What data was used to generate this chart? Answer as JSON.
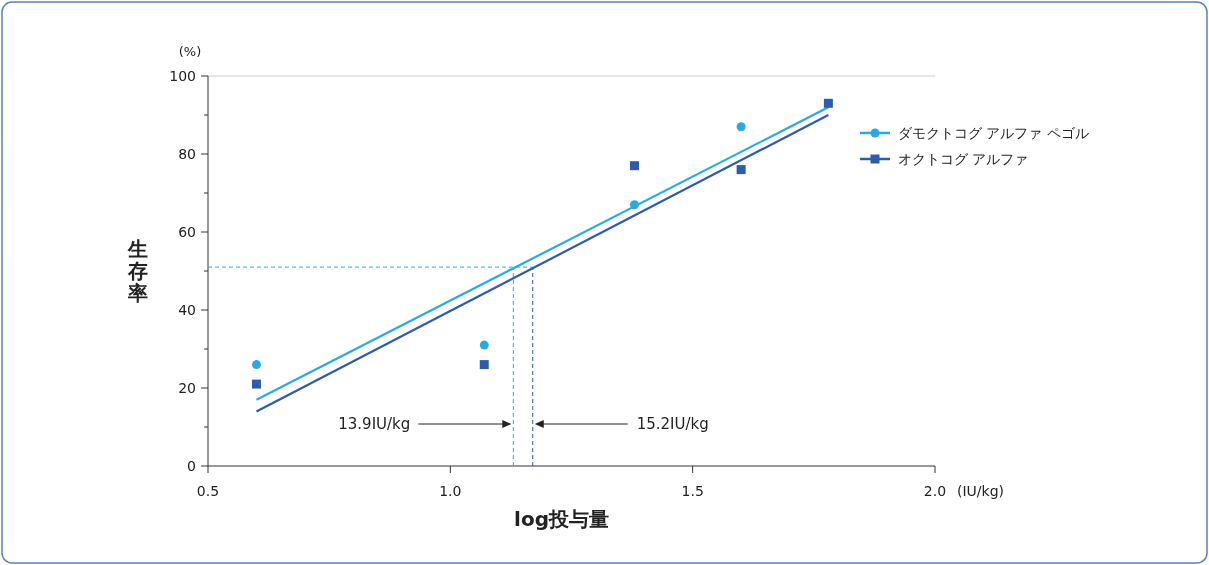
{
  "chart_data": {
    "type": "scatter",
    "xlabel": "log投与量",
    "ylabel": "生存率",
    "xlim": [
      0.5,
      2.0
    ],
    "xticks": [
      0.5,
      {
        "value": 1,
        "label": "1.0"
      },
      1.5,
      {
        "value": 2,
        "label": "2.0"
      }
    ],
    "ylim": [
      0,
      100
    ],
    "yticks": [
      0,
      {
        "value": 10,
        "label": null
      },
      20,
      {
        "value": 30,
        "label": null
      },
      40,
      {
        "value": 50,
        "label": null
      },
      60,
      {
        "value": 70,
        "label": null
      },
      80,
      {
        "value": 90,
        "label": null
      },
      100
    ],
    "grid": false,
    "legend": "top right",
    "series": [
      {
        "name": "ダモクトコグ アルファ ペゴル",
        "color": "#29abe2",
        "marker": "circle",
        "x": [
          0.6,
          1.07,
          1.38,
          1.6
        ],
        "values": [
          26,
          31,
          67,
          87
        ]
      },
      {
        "name": "オクトコグ アルファ",
        "color": "#2e5caa",
        "marker": "square",
        "x": [
          0.6,
          1.07,
          1.38,
          1.6,
          1.78
        ],
        "values": [
          21,
          26,
          77,
          76,
          93
        ]
      },
      {
        "color": "#29abe2",
        "type": "line",
        "marker": "none",
        "x": [
          0.6,
          1.78
        ],
        "values": [
          17,
          92
        ]
      },
      {
        "color": "#2e5caa",
        "type": "line",
        "marker": "none",
        "x": [
          0.6,
          1.78
        ],
        "values": [
          14,
          90
        ]
      }
    ],
    "ref_lines": [
      {
        "axis": "y",
        "value": 51,
        "color": "#29abe2",
        "line_style": "dashed"
      },
      {
        "axis": "x",
        "value": 1.13,
        "label": "13.9IU/kg",
        "color": "#29abe2",
        "line_style": "dashed"
      },
      {
        "axis": "x",
        "value": 1.17,
        "label": "15.2IU/kg",
        "color": "#2e5caa",
        "line_style": "dashed"
      }
    ],
    "annotations": [
      "(%)",
      "(IU/kg)"
    ]
  }
}
